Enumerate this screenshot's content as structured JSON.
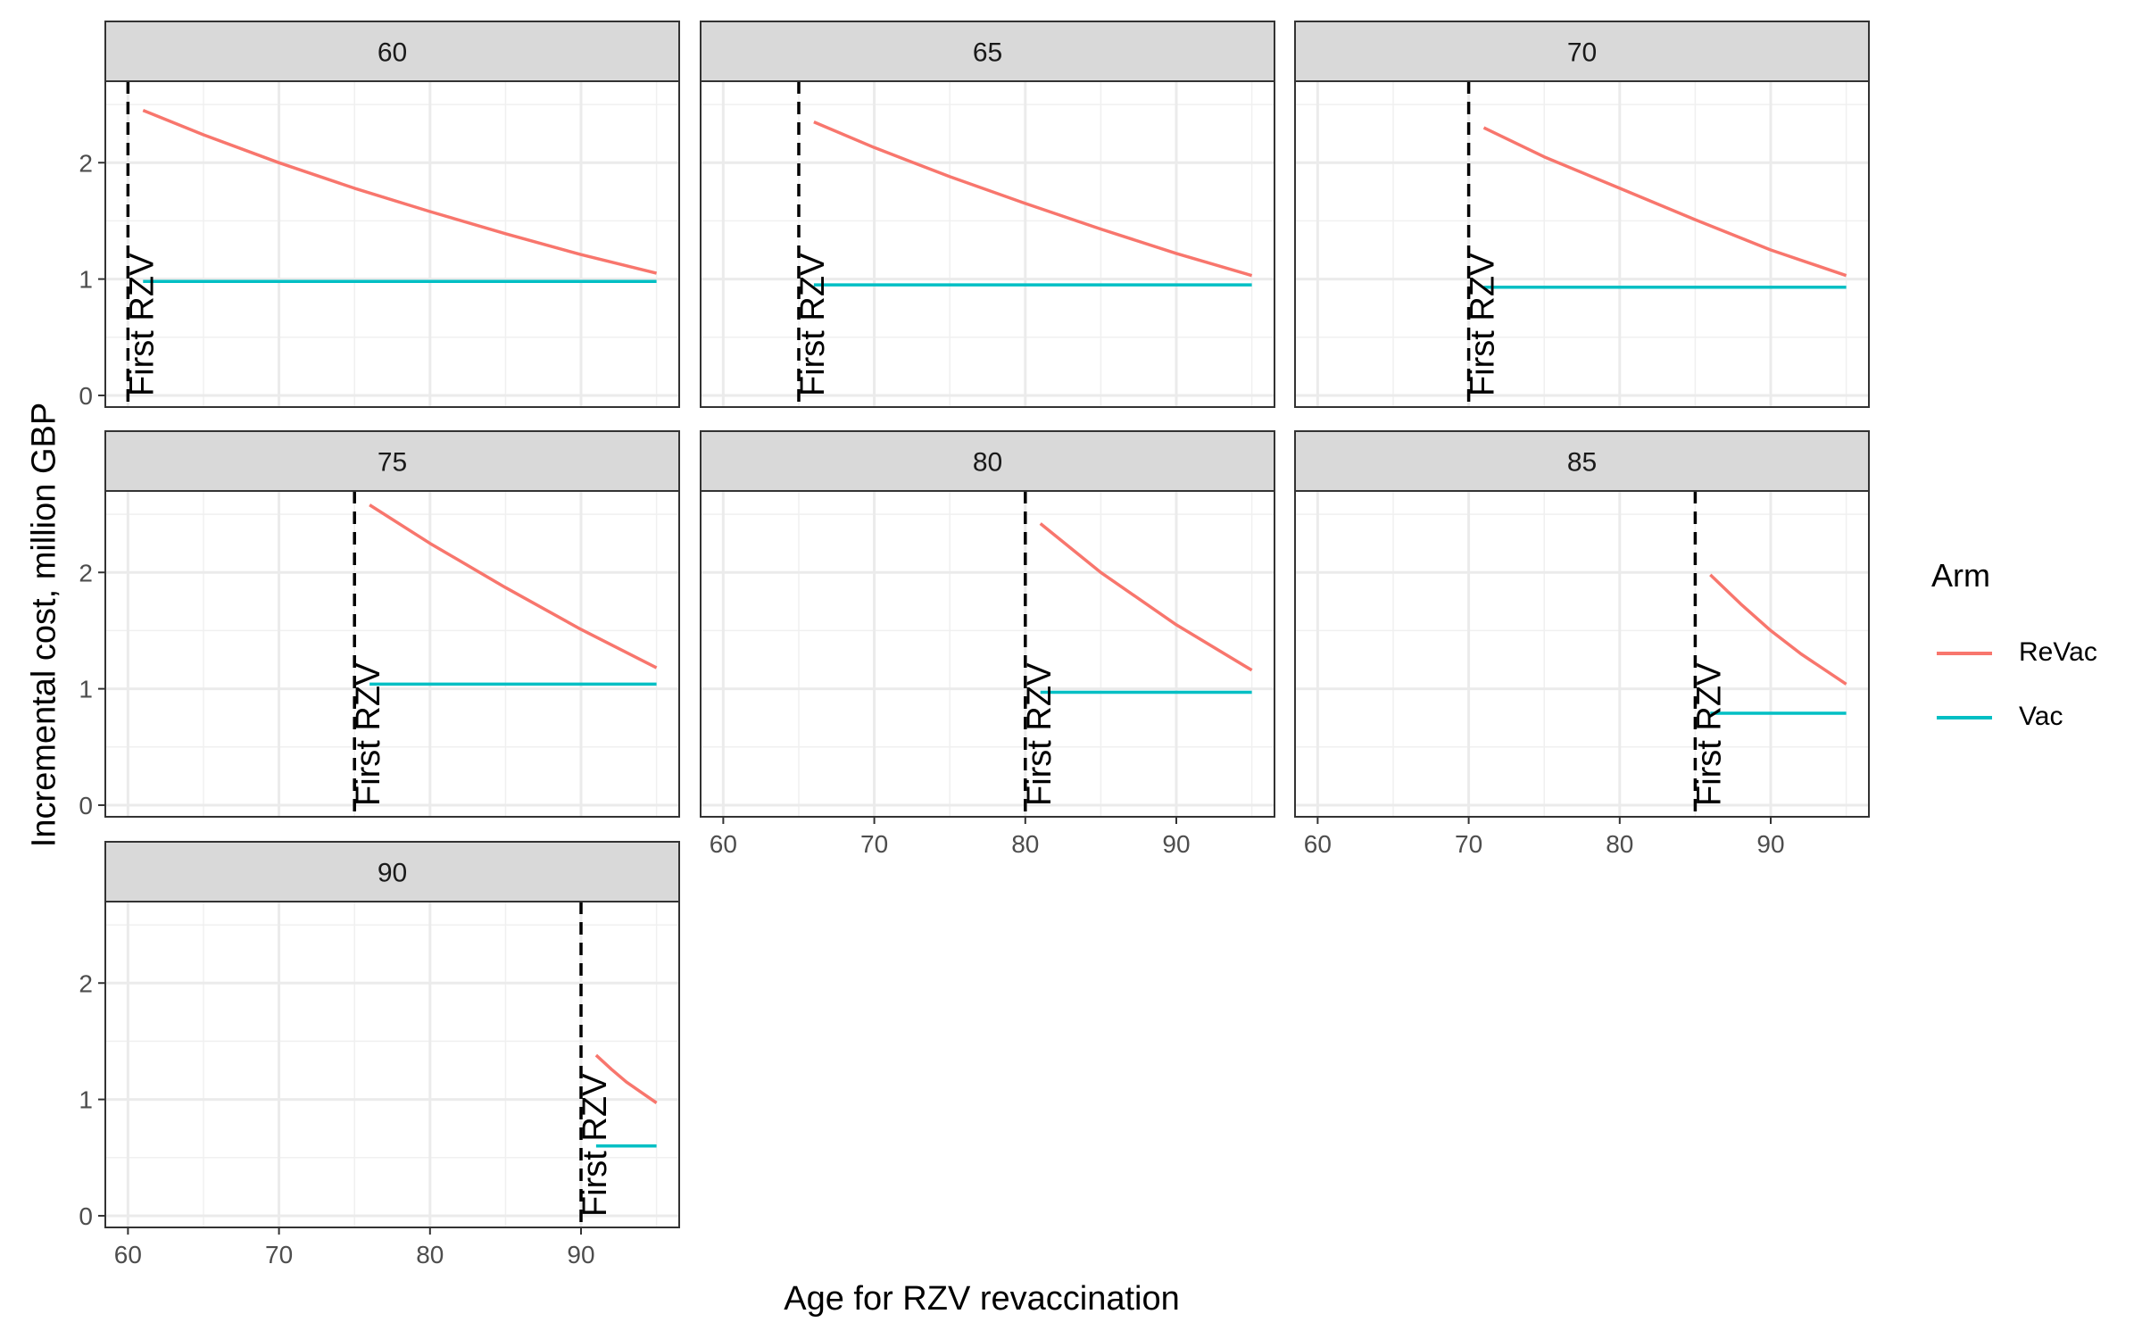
{
  "chart_data": {
    "type": "line",
    "xlabel": "Age for RZV revaccination",
    "ylabel": "Incremental cost, million GBP",
    "xlim": [
      58.5,
      96.5
    ],
    "ylim": [
      -0.1,
      2.7
    ],
    "xticks": [
      60,
      70,
      80,
      90
    ],
    "yticks": [
      0,
      1,
      2
    ],
    "grid": true,
    "legend": {
      "title": "Arm",
      "position": "right"
    },
    "colors": {
      "ReVac": "#F8766D",
      "Vac": "#00BFC4",
      "marker": "#000000"
    },
    "marker_label": "First RZV",
    "panels": [
      {
        "label": "60",
        "first_rzv": 60,
        "series": [
          {
            "name": "ReVac",
            "x": [
              61,
              65,
              70,
              75,
              80,
              85,
              90,
              95
            ],
            "y": [
              2.45,
              2.24,
              2.0,
              1.78,
              1.58,
              1.39,
              1.21,
              1.05
            ]
          },
          {
            "name": "Vac",
            "x": [
              61,
              95
            ],
            "y": [
              0.98,
              0.98
            ]
          }
        ]
      },
      {
        "label": "65",
        "first_rzv": 65,
        "series": [
          {
            "name": "ReVac",
            "x": [
              66,
              70,
              75,
              80,
              85,
              90,
              95
            ],
            "y": [
              2.35,
              2.13,
              1.88,
              1.65,
              1.43,
              1.22,
              1.03
            ]
          },
          {
            "name": "Vac",
            "x": [
              66,
              95
            ],
            "y": [
              0.95,
              0.95
            ]
          }
        ]
      },
      {
        "label": "70",
        "first_rzv": 70,
        "series": [
          {
            "name": "ReVac",
            "x": [
              71,
              75,
              80,
              85,
              90,
              95
            ],
            "y": [
              2.3,
              2.05,
              1.78,
              1.51,
              1.25,
              1.03
            ]
          },
          {
            "name": "Vac",
            "x": [
              71,
              95
            ],
            "y": [
              0.93,
              0.93
            ]
          }
        ]
      },
      {
        "label": "75",
        "first_rzv": 75,
        "series": [
          {
            "name": "ReVac",
            "x": [
              76,
              80,
              85,
              90,
              95
            ],
            "y": [
              2.58,
              2.25,
              1.87,
              1.51,
              1.18
            ]
          },
          {
            "name": "Vac",
            "x": [
              76,
              95
            ],
            "y": [
              1.04,
              1.04
            ]
          }
        ]
      },
      {
        "label": "80",
        "first_rzv": 80,
        "series": [
          {
            "name": "ReVac",
            "x": [
              81,
              85,
              90,
              95
            ],
            "y": [
              2.42,
              2.0,
              1.55,
              1.16
            ]
          },
          {
            "name": "Vac",
            "x": [
              81,
              95
            ],
            "y": [
              0.97,
              0.97
            ]
          }
        ]
      },
      {
        "label": "85",
        "first_rzv": 85,
        "series": [
          {
            "name": "ReVac",
            "x": [
              86,
              88,
              90,
              92,
              95
            ],
            "y": [
              1.98,
              1.73,
              1.5,
              1.3,
              1.04
            ]
          },
          {
            "name": "Vac",
            "x": [
              86,
              95
            ],
            "y": [
              0.79,
              0.79
            ]
          }
        ]
      },
      {
        "label": "90",
        "first_rzv": 90,
        "series": [
          {
            "name": "ReVac",
            "x": [
              91,
              92,
              93,
              94,
              95
            ],
            "y": [
              1.38,
              1.26,
              1.15,
              1.06,
              0.97
            ]
          },
          {
            "name": "Vac",
            "x": [
              91,
              95
            ],
            "y": [
              0.6,
              0.6
            ]
          }
        ]
      }
    ]
  }
}
